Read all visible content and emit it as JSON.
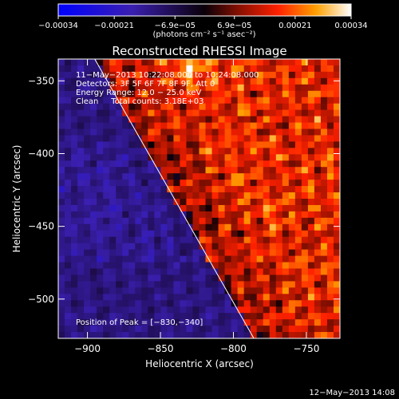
{
  "chart_data": {
    "type": "heatmap",
    "title": "Reconstructed RHESSI Image",
    "xlabel": "Heliocentric X (arcsec)",
    "ylabel": "Heliocentric Y (arcsec)",
    "xlim": [
      -920,
      -727
    ],
    "ylim": [
      -527,
      -335
    ],
    "x_ticks": [
      -900,
      -850,
      -800,
      -750
    ],
    "x_tick_labels": [
      "−900",
      "−850",
      "−800",
      "−750"
    ],
    "y_ticks": [
      -350,
      -400,
      -450,
      -500
    ],
    "y_tick_labels": [
      "−350",
      "−400",
      "−450",
      "−500"
    ],
    "colorbar": {
      "range": [
        -0.00034,
        0.00034
      ],
      "ticks": [
        -0.00034,
        -0.00021,
        -6.9e-05,
        6.9e-05,
        0.00021,
        0.00034
      ],
      "tick_labels": [
        "−0.00034",
        "−0.00021",
        "−6.9e−05",
        "6.9e−05",
        "0.00021",
        "0.00034"
      ],
      "units_text": "(photons cm⁻² s⁻¹ asec⁻²)"
    },
    "limb_line": {
      "from": [
        -895,
        -335
      ],
      "to": [
        -786,
        -527
      ]
    },
    "peak": [
      -830,
      -340
    ],
    "annotations": [
      "11−May−2013 10:22:08.000 to 10:24:08.000",
      "Detectors: 3F 5F 6F 7F 8F 9F, Att 0",
      "Energy Range: 12.0 − 25.0 keV",
      "Clean     Total counts: 3.18E+03"
    ],
    "peak_text": "Position of Peak = [−830,−340]",
    "timestamp": "12−May−2013 14:08"
  }
}
